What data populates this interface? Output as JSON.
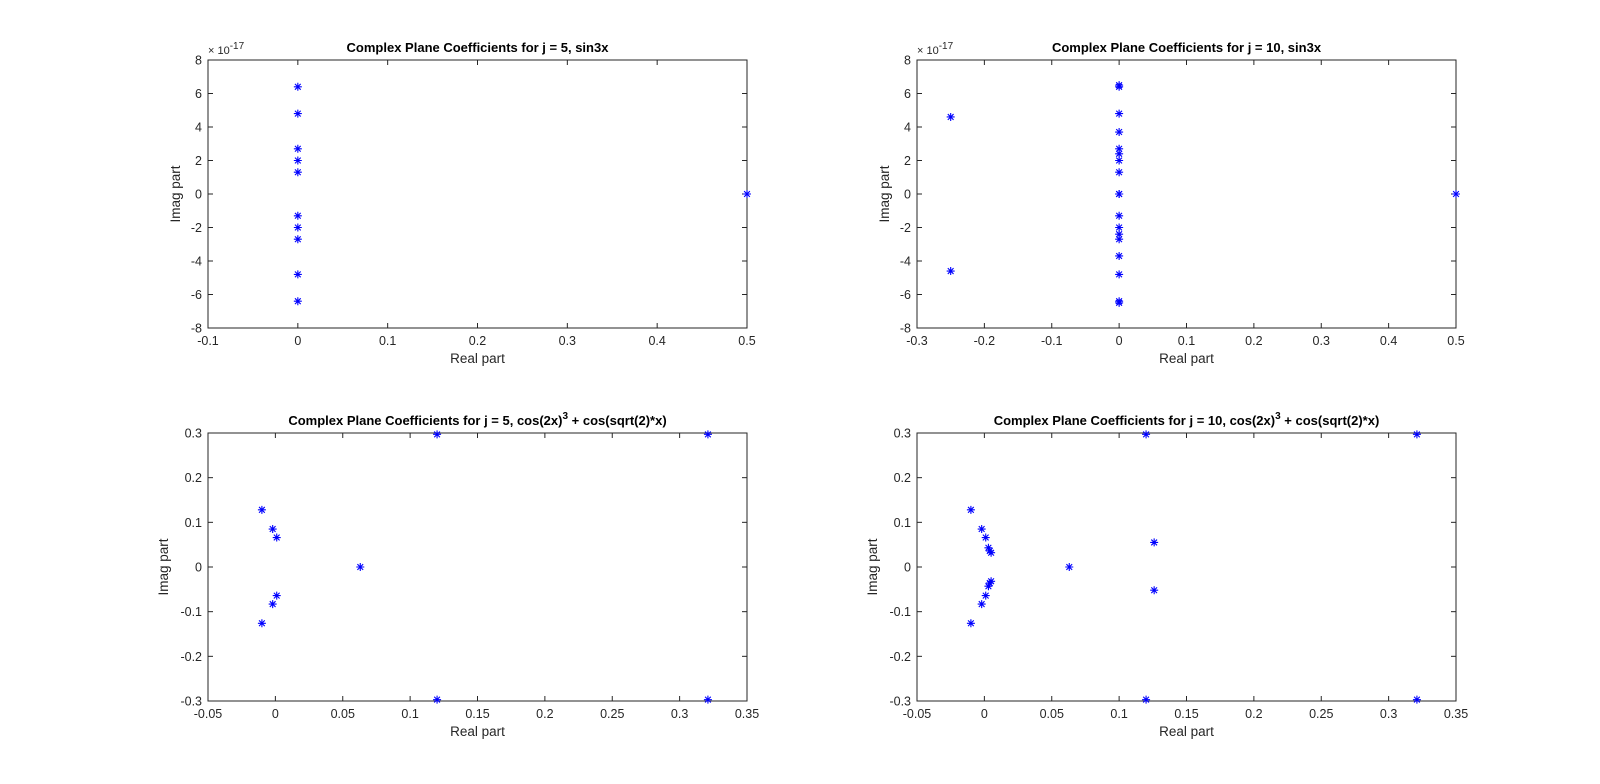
{
  "figure": {
    "background": "#ffffff",
    "marker_color": "#0000ff",
    "axis_color": "#262626"
  },
  "chart_data": [
    {
      "type": "scatter",
      "title": "Complex Plane Coefficients for j = 5, sin3x",
      "title_sup": "",
      "title_tail": "",
      "xlabel": "Real part",
      "ylabel": "Imag part",
      "xlim": [
        -0.1,
        0.5
      ],
      "ylim": [
        -8,
        8
      ],
      "x_ticks": [
        -0.1,
        0,
        0.1,
        0.2,
        0.3,
        0.4,
        0.5
      ],
      "x_tick_labels": [
        "-0.1",
        "0",
        "0.1",
        "0.2",
        "0.3",
        "0.4",
        "0.5"
      ],
      "y_ticks": [
        -8,
        -6,
        -4,
        -2,
        0,
        2,
        4,
        6,
        8
      ],
      "y_tick_labels": [
        "-8",
        "-6",
        "-4",
        "-2",
        "0",
        "2",
        "4",
        "6",
        "8"
      ],
      "y_multiplier_base": "× 10",
      "y_multiplier_exp": "-17",
      "marker": "asterisk",
      "grid": false,
      "series": [
        {
          "x": [
            0,
            0,
            0,
            0,
            0,
            0,
            0,
            0,
            0,
            0,
            0.5
          ],
          "y": [
            6.4,
            4.8,
            2.7,
            2.0,
            1.3,
            -1.3,
            -2.0,
            -2.7,
            -4.8,
            -6.4,
            0
          ]
        }
      ]
    },
    {
      "type": "scatter",
      "title": "Complex Plane Coefficients for j = 10, sin3x",
      "title_sup": "",
      "title_tail": "",
      "xlabel": "Real part",
      "ylabel": "Imag part",
      "xlim": [
        -0.3,
        0.5
      ],
      "ylim": [
        -8,
        8
      ],
      "x_ticks": [
        -0.3,
        -0.2,
        -0.1,
        0,
        0.1,
        0.2,
        0.3,
        0.4,
        0.5
      ],
      "x_tick_labels": [
        "-0.3",
        "-0.2",
        "-0.1",
        "0",
        "0.1",
        "0.2",
        "0.3",
        "0.4",
        "0.5"
      ],
      "y_ticks": [
        -8,
        -6,
        -4,
        -2,
        0,
        2,
        4,
        6,
        8
      ],
      "y_tick_labels": [
        "-8",
        "-6",
        "-4",
        "-2",
        "0",
        "2",
        "4",
        "6",
        "8"
      ],
      "y_multiplier_base": "× 10",
      "y_multiplier_exp": "-17",
      "marker": "asterisk",
      "grid": false,
      "series": [
        {
          "x": [
            -0.25,
            -0.25,
            0,
            0,
            0,
            0,
            0,
            0,
            0,
            0,
            0,
            0,
            0,
            0,
            0,
            0,
            0,
            0,
            0,
            0,
            0.5
          ],
          "y": [
            4.6,
            -4.6,
            6.5,
            6.4,
            4.8,
            3.7,
            2.7,
            2.4,
            2.0,
            1.3,
            -1.3,
            -2.0,
            -2.4,
            -2.7,
            -3.7,
            -4.8,
            -6.4,
            -6.5,
            0,
            0,
            0
          ]
        }
      ]
    },
    {
      "type": "scatter",
      "title": "Complex Plane Coefficients for j = 5, cos(2x)",
      "title_sup": "3",
      "title_tail": " + cos(sqrt(2)*x)",
      "xlabel": "Real part",
      "ylabel": "Imag part",
      "xlim": [
        -0.05,
        0.35
      ],
      "ylim": [
        -0.3,
        0.3
      ],
      "x_ticks": [
        -0.05,
        0,
        0.05,
        0.1,
        0.15,
        0.2,
        0.25,
        0.3,
        0.35
      ],
      "x_tick_labels": [
        "-0.05",
        "0",
        "0.05",
        "0.1",
        "0.15",
        "0.2",
        "0.25",
        "0.3",
        "0.35"
      ],
      "y_ticks": [
        -0.3,
        -0.2,
        -0.1,
        0,
        0.1,
        0.2,
        0.3
      ],
      "y_tick_labels": [
        "-0.3",
        "-0.2",
        "-0.1",
        "0",
        "0.1",
        "0.2",
        "0.3"
      ],
      "y_multiplier_base": "",
      "y_multiplier_exp": "",
      "marker": "asterisk",
      "grid": false,
      "series": [
        {
          "x": [
            -0.01,
            -0.002,
            0.001,
            0.063,
            0.12,
            0.12,
            0.321,
            0.321,
            0.001,
            -0.002,
            -0.01
          ],
          "y": [
            0.128,
            0.085,
            0.066,
            0,
            0.297,
            -0.297,
            0.297,
            -0.297,
            -0.064,
            -0.083,
            -0.126
          ]
        }
      ]
    },
    {
      "type": "scatter",
      "title": "Complex Plane Coefficients for j = 10, cos(2x)",
      "title_sup": "3",
      "title_tail": " + cos(sqrt(2)*x)",
      "xlabel": "Real part",
      "ylabel": "Imag part",
      "xlim": [
        -0.05,
        0.35
      ],
      "ylim": [
        -0.3,
        0.3
      ],
      "x_ticks": [
        -0.05,
        0,
        0.05,
        0.1,
        0.15,
        0.2,
        0.25,
        0.3,
        0.35
      ],
      "x_tick_labels": [
        "-0.05",
        "0",
        "0.05",
        "0.1",
        "0.15",
        "0.2",
        "0.25",
        "0.3",
        "0.35"
      ],
      "y_ticks": [
        -0.3,
        -0.2,
        -0.1,
        0,
        0.1,
        0.2,
        0.3
      ],
      "y_tick_labels": [
        "-0.3",
        "-0.2",
        "-0.1",
        "0",
        "0.1",
        "0.2",
        "0.3"
      ],
      "y_multiplier_base": "",
      "y_multiplier_exp": "",
      "marker": "asterisk",
      "grid": false,
      "series": [
        {
          "x": [
            -0.01,
            -0.002,
            0.001,
            0.003,
            0.004,
            0.005,
            0.005,
            0.004,
            0.003,
            0.001,
            -0.002,
            -0.01,
            0.063,
            0.12,
            0.12,
            0.126,
            0.126,
            0.321,
            0.321
          ],
          "y": [
            0.128,
            0.085,
            0.066,
            0.043,
            0.036,
            0.032,
            -0.032,
            -0.036,
            -0.043,
            -0.064,
            -0.083,
            -0.126,
            0,
            0.297,
            -0.297,
            0.055,
            -0.052,
            0.297,
            -0.297
          ]
        }
      ]
    }
  ]
}
